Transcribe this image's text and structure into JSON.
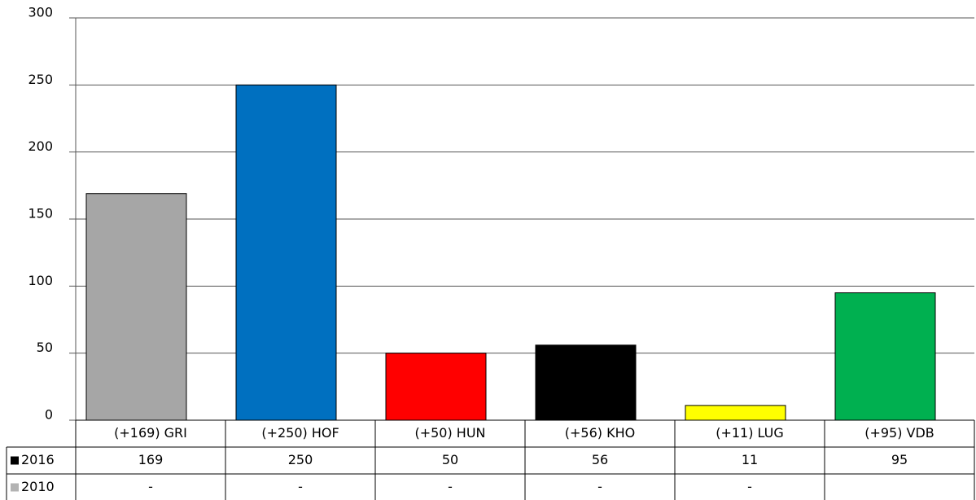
{
  "chart_data": {
    "type": "bar",
    "categories": [
      "(+169) GRI",
      "(+250) HOF",
      "(+50) HUN",
      "(+56) KHO",
      "(+11) LUG",
      "(+95) VDB"
    ],
    "colors": [
      "#a6a6a6",
      "#0070c0",
      "#ff0000",
      "#000000",
      "#ffff00",
      "#00b050"
    ],
    "series": [
      {
        "name": "2016",
        "color": "#000000",
        "values": [
          169,
          250,
          50,
          56,
          11,
          95
        ]
      },
      {
        "name": "2010",
        "color": "#b3b3b3",
        "values": [
          null,
          null,
          null,
          null,
          null,
          null
        ],
        "value_labels": [
          "-",
          "-",
          "-",
          "-",
          "-",
          null
        ]
      }
    ],
    "ylim": [
      0,
      300
    ],
    "yticks": [
      0,
      50,
      100,
      150,
      200,
      250,
      300
    ],
    "grid": true
  }
}
